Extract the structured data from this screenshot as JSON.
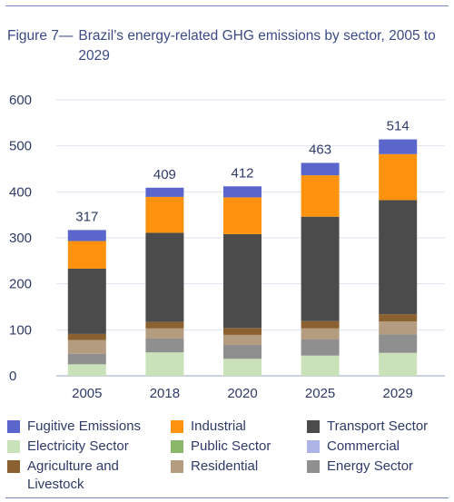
{
  "header": {
    "figure_label": "Figure 7—",
    "title": "Brazil’s energy-related GHG emissions by sector, 2005 to 2029"
  },
  "chart_data": {
    "type": "bar",
    "stacked": true,
    "title": "Brazil’s energy-related GHG emissions by sector, 2005 to 2029",
    "xlabel": "",
    "ylabel": "",
    "categories": [
      "2005",
      "2018",
      "2020",
      "2025",
      "2029"
    ],
    "ylim": [
      0,
      600
    ],
    "yticks": [
      0,
      100,
      200,
      300,
      400,
      500,
      600
    ],
    "totals": [
      317,
      409,
      412,
      463,
      514
    ],
    "grid": true,
    "legend_position": "bottom",
    "series": [
      {
        "name": "Electricity Sector",
        "color": "#c9e2b9",
        "values": [
          25,
          51,
          37,
          44,
          50
        ]
      },
      {
        "name": "Public Sector",
        "color": "#8bb868",
        "values": [
          0,
          0,
          0,
          0,
          0
        ]
      },
      {
        "name": "Commercial",
        "color": "#aeb3e6",
        "values": [
          0,
          0,
          0,
          0,
          0
        ]
      },
      {
        "name": "Energy Sector",
        "color": "#8f8f8f",
        "values": [
          23,
          30,
          30,
          35,
          40
        ]
      },
      {
        "name": "Residential",
        "color": "#b39c80",
        "values": [
          30,
          22,
          22,
          24,
          28
        ]
      },
      {
        "name": "Agriculture and Livestock",
        "color": "#8b6130",
        "values": [
          13,
          14,
          15,
          16,
          16
        ]
      },
      {
        "name": "Transport Sector",
        "color": "#4b4b4b",
        "values": [
          142,
          194,
          204,
          227,
          248
        ]
      },
      {
        "name": "Industrial",
        "color": "#ff930f",
        "values": [
          60,
          78,
          80,
          90,
          100
        ]
      },
      {
        "name": "Fugitive Emissions",
        "color": "#5b66cc",
        "values": [
          24,
          20,
          24,
          27,
          32
        ]
      }
    ]
  },
  "legend": [
    {
      "label": "Fugitive Emissions",
      "color": "#5b66cc",
      "icon": "swatch"
    },
    {
      "label": "Industrial",
      "color": "#ff930f",
      "icon": "swatch"
    },
    {
      "label": "Transport Sector",
      "color": "#4b4b4b",
      "icon": "swatch"
    },
    {
      "label": "Electricity Sector",
      "color": "#c9e2b9",
      "icon": "swatch"
    },
    {
      "label": "Public Sector",
      "color": "#8bb868",
      "icon": "swatch"
    },
    {
      "label": "Commercial",
      "color": "#aeb3e6",
      "icon": "swatch"
    },
    {
      "label": "Agriculture and Livestock",
      "color": "#8b6130",
      "icon": "swatch"
    },
    {
      "label": "Residential",
      "color": "#b39c80",
      "icon": "swatch"
    },
    {
      "label": "Energy Sector",
      "color": "#8f8f8f",
      "icon": "swatch"
    }
  ]
}
